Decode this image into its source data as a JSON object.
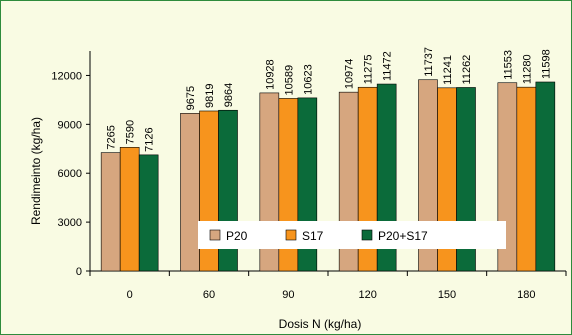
{
  "chart_data": {
    "type": "bar",
    "title": "",
    "xlabel": "Dosis N (kg/ha)",
    "ylabel": "Rendimeinto (kg/ha)",
    "categories": [
      "0",
      "60",
      "90",
      "120",
      "150",
      "180"
    ],
    "yticks": [
      0,
      3000,
      6000,
      9000,
      12000
    ],
    "ylim": [
      0,
      13500
    ],
    "grid": false,
    "legend_position": "bottom-center",
    "series": [
      {
        "name": "P20",
        "color": "#d6a67f",
        "values": [
          7265,
          9675,
          10928,
          10974,
          11737,
          11553
        ]
      },
      {
        "name": "S17",
        "color": "#f7941d",
        "values": [
          7590,
          9819,
          10589,
          11275,
          11241,
          11280
        ]
      },
      {
        "name": "P20+S17",
        "color": "#0b6b3a",
        "values": [
          7126,
          9864,
          10623,
          11472,
          11262,
          11598
        ]
      }
    ]
  },
  "colors": {
    "background": "#f9fbe3",
    "border": "#2e8b3c"
  }
}
